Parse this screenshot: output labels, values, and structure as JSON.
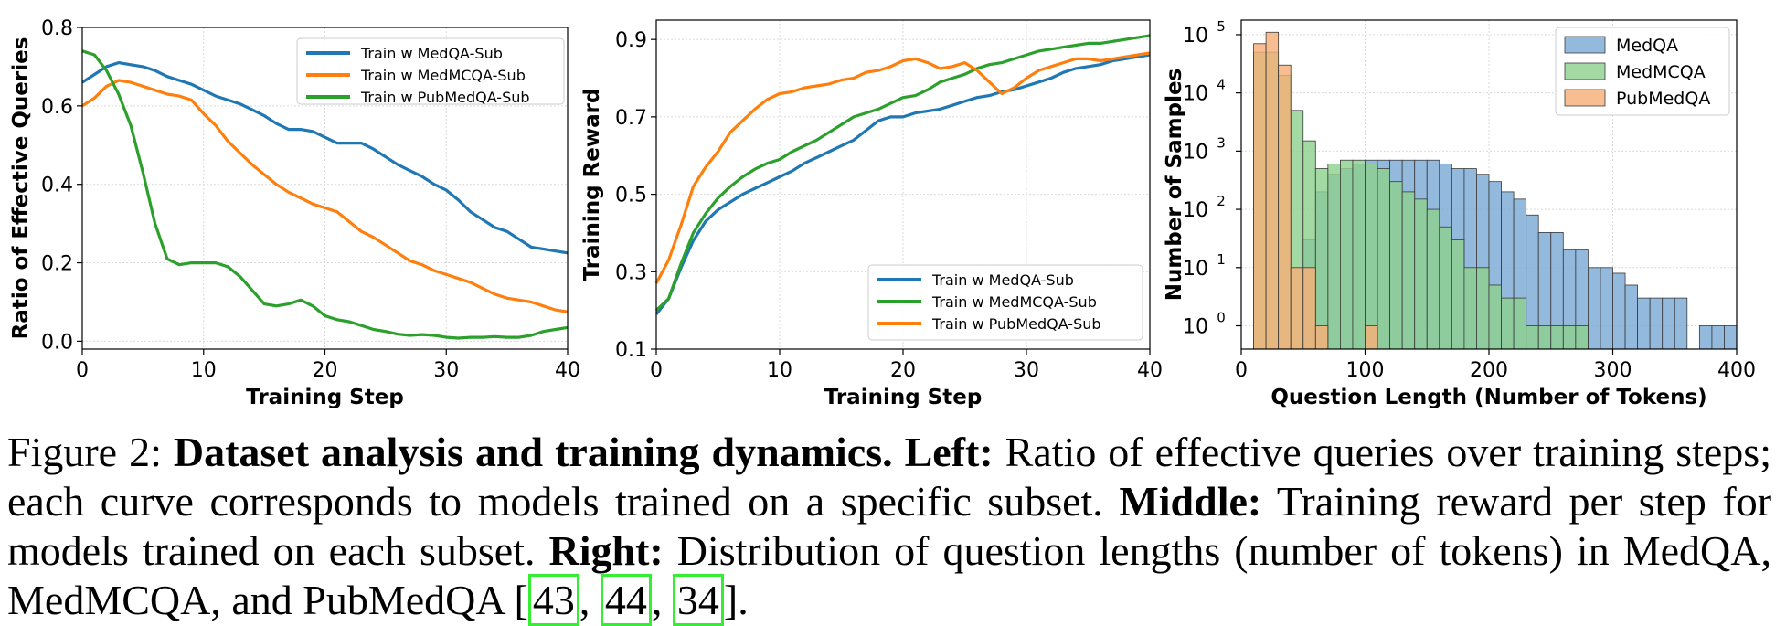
{
  "chart_data": [
    {
      "type": "line",
      "xlabel": "Training Step",
      "ylabel": "Ratio of Effective Queries",
      "xlim": [
        0,
        40
      ],
      "ylim": [
        -0.02,
        0.8
      ],
      "xticks": [
        0,
        10,
        20,
        30,
        40
      ],
      "yticks": [
        0.0,
        0.2,
        0.4,
        0.6,
        0.8
      ],
      "ytick_labels": [
        "0.0",
        "0.2",
        "0.4",
        "0.6",
        "0.8"
      ],
      "grid": true,
      "legend_position": "top-right",
      "series": [
        {
          "name": "Train w MedQA-Sub",
          "color": "#1f77b4",
          "x": [
            0,
            1,
            2,
            3,
            4,
            5,
            6,
            7,
            8,
            9,
            10,
            11,
            12,
            13,
            14,
            15,
            16,
            17,
            18,
            19,
            20,
            21,
            22,
            23,
            24,
            25,
            26,
            27,
            28,
            29,
            30,
            31,
            32,
            33,
            34,
            35,
            36,
            37,
            38,
            39,
            40
          ],
          "y": [
            0.66,
            0.68,
            0.7,
            0.71,
            0.705,
            0.7,
            0.69,
            0.675,
            0.665,
            0.655,
            0.64,
            0.625,
            0.615,
            0.605,
            0.59,
            0.575,
            0.555,
            0.54,
            0.54,
            0.535,
            0.52,
            0.505,
            0.505,
            0.505,
            0.49,
            0.47,
            0.45,
            0.435,
            0.42,
            0.4,
            0.385,
            0.36,
            0.33,
            0.31,
            0.29,
            0.28,
            0.26,
            0.24,
            0.235,
            0.23,
            0.225
          ]
        },
        {
          "name": "Train w MedMCQA-Sub",
          "color": "#ff7f0e",
          "x": [
            0,
            1,
            2,
            3,
            4,
            5,
            6,
            7,
            8,
            9,
            10,
            11,
            12,
            13,
            14,
            15,
            16,
            17,
            18,
            19,
            20,
            21,
            22,
            23,
            24,
            25,
            26,
            27,
            28,
            29,
            30,
            31,
            32,
            33,
            34,
            35,
            36,
            37,
            38,
            39,
            40
          ],
          "y": [
            0.6,
            0.62,
            0.65,
            0.665,
            0.66,
            0.65,
            0.64,
            0.63,
            0.625,
            0.615,
            0.58,
            0.55,
            0.51,
            0.48,
            0.45,
            0.425,
            0.4,
            0.38,
            0.365,
            0.35,
            0.34,
            0.33,
            0.305,
            0.28,
            0.265,
            0.245,
            0.225,
            0.205,
            0.195,
            0.18,
            0.17,
            0.16,
            0.15,
            0.135,
            0.12,
            0.11,
            0.105,
            0.1,
            0.09,
            0.08,
            0.075
          ]
        },
        {
          "name": "Train w PubMedQA-Sub",
          "color": "#2ca02c",
          "x": [
            0,
            1,
            2,
            3,
            4,
            5,
            6,
            7,
            8,
            9,
            10,
            11,
            12,
            13,
            14,
            15,
            16,
            17,
            18,
            19,
            20,
            21,
            22,
            23,
            24,
            25,
            26,
            27,
            28,
            29,
            30,
            31,
            32,
            33,
            34,
            35,
            36,
            37,
            38,
            39,
            40
          ],
          "y": [
            0.74,
            0.73,
            0.69,
            0.63,
            0.55,
            0.43,
            0.3,
            0.21,
            0.195,
            0.2,
            0.2,
            0.2,
            0.19,
            0.165,
            0.13,
            0.095,
            0.09,
            0.095,
            0.105,
            0.09,
            0.065,
            0.055,
            0.05,
            0.04,
            0.03,
            0.025,
            0.018,
            0.015,
            0.017,
            0.015,
            0.01,
            0.008,
            0.01,
            0.01,
            0.012,
            0.01,
            0.01,
            0.015,
            0.025,
            0.03,
            0.035
          ]
        }
      ]
    },
    {
      "type": "line",
      "xlabel": "Training Step",
      "ylabel": "Training Reward",
      "xlim": [
        0,
        40
      ],
      "ylim": [
        0.1,
        0.95
      ],
      "xticks": [
        0,
        10,
        20,
        30,
        40
      ],
      "yticks": [
        0.1,
        0.3,
        0.5,
        0.7,
        0.9
      ],
      "ytick_labels": [
        "0.1",
        "0.3",
        "0.5",
        "0.7",
        "0.9"
      ],
      "grid": true,
      "legend_position": "bottom-right",
      "series": [
        {
          "name": "Train w MedQA-Sub",
          "color": "#1f77b4",
          "x": [
            0,
            1,
            2,
            3,
            4,
            5,
            6,
            7,
            8,
            9,
            10,
            11,
            12,
            13,
            14,
            15,
            16,
            17,
            18,
            19,
            20,
            21,
            22,
            23,
            24,
            25,
            26,
            27,
            28,
            29,
            30,
            31,
            32,
            33,
            34,
            35,
            36,
            37,
            38,
            39,
            40
          ],
          "y": [
            0.19,
            0.23,
            0.31,
            0.38,
            0.43,
            0.46,
            0.48,
            0.5,
            0.515,
            0.53,
            0.545,
            0.56,
            0.58,
            0.595,
            0.61,
            0.625,
            0.64,
            0.665,
            0.69,
            0.7,
            0.7,
            0.71,
            0.715,
            0.72,
            0.73,
            0.74,
            0.75,
            0.755,
            0.765,
            0.77,
            0.78,
            0.79,
            0.8,
            0.815,
            0.825,
            0.83,
            0.835,
            0.845,
            0.85,
            0.855,
            0.86
          ]
        },
        {
          "name": "Train w MedMCQA-Sub",
          "color": "#2ca02c",
          "x": [
            0,
            1,
            2,
            3,
            4,
            5,
            6,
            7,
            8,
            9,
            10,
            11,
            12,
            13,
            14,
            15,
            16,
            17,
            18,
            19,
            20,
            21,
            22,
            23,
            24,
            25,
            26,
            27,
            28,
            29,
            30,
            31,
            32,
            33,
            34,
            35,
            36,
            37,
            38,
            39,
            40
          ],
          "y": [
            0.2,
            0.23,
            0.32,
            0.4,
            0.45,
            0.49,
            0.52,
            0.545,
            0.565,
            0.58,
            0.59,
            0.61,
            0.625,
            0.64,
            0.66,
            0.68,
            0.7,
            0.71,
            0.72,
            0.735,
            0.75,
            0.755,
            0.77,
            0.79,
            0.8,
            0.81,
            0.825,
            0.835,
            0.84,
            0.85,
            0.86,
            0.87,
            0.875,
            0.88,
            0.885,
            0.89,
            0.89,
            0.895,
            0.9,
            0.905,
            0.91
          ]
        },
        {
          "name": "Train w PubMedQA-Sub",
          "color": "#ff7f0e",
          "x": [
            0,
            1,
            2,
            3,
            4,
            5,
            6,
            7,
            8,
            9,
            10,
            11,
            12,
            13,
            14,
            15,
            16,
            17,
            18,
            19,
            20,
            21,
            22,
            23,
            24,
            25,
            26,
            27,
            28,
            29,
            30,
            31,
            32,
            33,
            34,
            35,
            36,
            37,
            38,
            39,
            40
          ],
          "y": [
            0.27,
            0.33,
            0.42,
            0.52,
            0.57,
            0.61,
            0.66,
            0.69,
            0.72,
            0.745,
            0.76,
            0.765,
            0.775,
            0.78,
            0.785,
            0.795,
            0.8,
            0.815,
            0.82,
            0.83,
            0.845,
            0.85,
            0.84,
            0.825,
            0.83,
            0.84,
            0.82,
            0.79,
            0.76,
            0.775,
            0.8,
            0.82,
            0.83,
            0.84,
            0.85,
            0.85,
            0.845,
            0.85,
            0.855,
            0.86,
            0.865
          ]
        }
      ]
    },
    {
      "type": "histogram",
      "xlabel": "Question Length (Number of Tokens)",
      "ylabel": "Number of Samples",
      "yscale": "log",
      "xlim": [
        0,
        400
      ],
      "xticks": [
        0,
        100,
        200,
        300,
        400
      ],
      "yticks_exp": [
        0,
        1,
        2,
        3,
        4,
        5
      ],
      "ytick_base": "10",
      "grid": true,
      "legend_position": "top-right",
      "series": [
        {
          "name": "MedQA",
          "color": "#7ba9d6",
          "bin_width": 10,
          "bin_starts": [
            50,
            60,
            70,
            80,
            90,
            100,
            110,
            120,
            130,
            140,
            150,
            160,
            170,
            180,
            190,
            200,
            210,
            220,
            230,
            240,
            250,
            260,
            270,
            280,
            290,
            300,
            310,
            320,
            330,
            340,
            350,
            370,
            380,
            390
          ],
          "values": [
            30,
            200,
            400,
            500,
            600,
            700,
            700,
            700,
            700,
            700,
            700,
            600,
            500,
            500,
            400,
            300,
            200,
            150,
            80,
            40,
            40,
            20,
            20,
            10,
            10,
            8,
            5,
            3,
            3,
            3,
            3,
            1,
            1,
            1
          ]
        },
        {
          "name": "MedMCQA",
          "color": "#8fd18f",
          "bin_width": 10,
          "bin_starts": [
            10,
            20,
            30,
            40,
            50,
            60,
            70,
            80,
            90,
            100,
            110,
            120,
            130,
            140,
            150,
            160,
            170,
            180,
            190,
            200,
            210,
            220,
            230,
            240,
            250,
            260,
            270
          ],
          "values": [
            50000,
            50000,
            20000,
            5000,
            1500,
            500,
            600,
            700,
            700,
            600,
            500,
            300,
            200,
            150,
            100,
            50,
            30,
            10,
            10,
            5,
            3,
            3,
            1,
            1,
            1,
            1,
            1
          ]
        },
        {
          "name": "PubMedQA",
          "color": "#f6b079",
          "bin_width": 10,
          "bin_starts": [
            10,
            20,
            30,
            40,
            50,
            60,
            100
          ],
          "values": [
            70000,
            110000,
            30000,
            10,
            10,
            1,
            1
          ]
        }
      ]
    }
  ],
  "caption": {
    "figure_label": "Figure 2: ",
    "bold_title": "Dataset analysis and training dynamics.",
    "left_label": "Left:",
    "left_text": " Ratio of effective queries over training steps; each curve corresponds to models trained on a specific subset. ",
    "middle_label": "Middle:",
    "middle_text": " Training reward per step for models trained on each subset. ",
    "right_label": "Right:",
    "right_text": " Distribution of question lengths (number of tokens) in MedQA, MedMCQA, and PubMedQA [",
    "ref1": "43",
    "sep1": ", ",
    "ref2": "44",
    "sep2": ", ",
    "ref3": "34",
    "end": "]."
  }
}
